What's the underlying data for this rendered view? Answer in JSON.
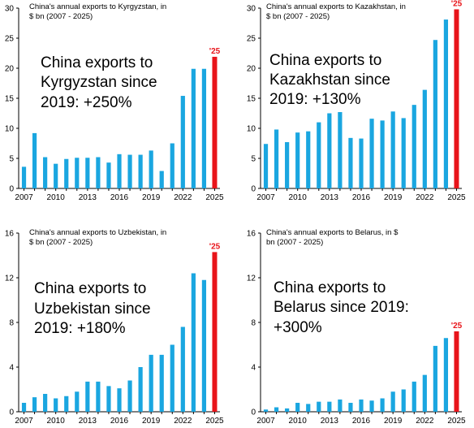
{
  "colors": {
    "bar": "#1aa6e0",
    "highlight": "#e8141a",
    "axis": "#000000"
  },
  "chart_data": [
    {
      "type": "bar",
      "title": "China's annual exports to Kyrgyzstan, in $ bn (2007 - 2025)",
      "title_lines": [
        "China's annual exports to Kyrgyzstan, in",
        "$ bn (2007 - 2025)"
      ],
      "annotation_lines": [
        "China exports to",
        "Kyrgyzstan since",
        "2019: +250%"
      ],
      "highlight_label": "'25",
      "x": [
        2007,
        2008,
        2009,
        2010,
        2011,
        2012,
        2013,
        2014,
        2015,
        2016,
        2017,
        2018,
        2019,
        2020,
        2021,
        2022,
        2023,
        2024,
        2025
      ],
      "values": [
        3.6,
        9.2,
        5.2,
        4.1,
        4.9,
        5.1,
        5.1,
        5.2,
        4.3,
        5.7,
        5.6,
        5.6,
        6.3,
        2.9,
        7.5,
        15.4,
        19.9,
        19.9,
        21.9
      ],
      "ylim": [
        0,
        30
      ],
      "yticks": [
        0,
        5,
        10,
        15,
        20,
        25,
        30
      ],
      "xticks": [
        "2007",
        "2010",
        "2013",
        "2016",
        "2019",
        "2022",
        "2025"
      ]
    },
    {
      "type": "bar",
      "title": "China's annual exports to Kazakhstan, in $ bn (2007 - 2025)",
      "title_lines": [
        "China's annual exports to Kazakhstan, in",
        "$ bn (2007 - 2025)"
      ],
      "annotation_lines": [
        "China exports to",
        "Kazakhstan since",
        "2019: +130%"
      ],
      "highlight_label": "'25",
      "x": [
        2007,
        2008,
        2009,
        2010,
        2011,
        2012,
        2013,
        2014,
        2015,
        2016,
        2017,
        2018,
        2019,
        2020,
        2021,
        2022,
        2023,
        2024,
        2025
      ],
      "values": [
        7.4,
        9.8,
        7.7,
        9.3,
        9.5,
        11.0,
        12.5,
        12.7,
        8.4,
        8.3,
        11.6,
        11.3,
        12.8,
        11.7,
        13.9,
        16.4,
        24.7,
        28.1,
        29.8
      ],
      "ylim": [
        0,
        30
      ],
      "yticks": [
        0,
        5,
        10,
        15,
        20,
        25,
        30
      ],
      "xticks": [
        "2007",
        "2010",
        "2013",
        "2016",
        "2019",
        "2022",
        "2025"
      ]
    },
    {
      "type": "bar",
      "title": "China's annual exports to Uzbekistan, in $ bn (2007 - 2025)",
      "title_lines": [
        "China's annual exports to Uzbekistan, in",
        "$ bn (2007 - 2025)"
      ],
      "annotation_lines": [
        "China exports to",
        "Uzbekistan since",
        "2019: +180%"
      ],
      "highlight_label": "'25",
      "x": [
        2007,
        2008,
        2009,
        2010,
        2011,
        2012,
        2013,
        2014,
        2015,
        2016,
        2017,
        2018,
        2019,
        2020,
        2021,
        2022,
        2023,
        2024,
        2025
      ],
      "values": [
        0.8,
        1.3,
        1.6,
        1.2,
        1.4,
        1.8,
        2.7,
        2.7,
        2.3,
        2.1,
        2.8,
        4.0,
        5.1,
        5.1,
        6.0,
        7.6,
        12.4,
        11.8,
        14.3
      ],
      "ylim": [
        0,
        16
      ],
      "yticks": [
        0,
        4,
        8,
        12,
        16
      ],
      "xticks": [
        "2007",
        "2010",
        "2013",
        "2016",
        "2019",
        "2022",
        "2025"
      ]
    },
    {
      "type": "bar",
      "title": "China's annual exports to Belarus, in $ bn (2007 - 2025)",
      "title_lines": [
        "China's annual exports to Belarus, in $",
        "bn (2007 - 2025)"
      ],
      "annotation_lines": [
        "China exports to",
        "Belarus since 2019:",
        "+300%"
      ],
      "highlight_label": "'25",
      "x": [
        2007,
        2008,
        2009,
        2010,
        2011,
        2012,
        2013,
        2014,
        2015,
        2016,
        2017,
        2018,
        2019,
        2020,
        2021,
        2022,
        2023,
        2024,
        2025
      ],
      "values": [
        0.2,
        0.4,
        0.3,
        0.8,
        0.7,
        0.9,
        0.9,
        1.1,
        0.8,
        1.1,
        1.0,
        1.2,
        1.8,
        2.0,
        2.7,
        3.3,
        5.9,
        6.6,
        7.2
      ],
      "ylim": [
        0,
        16
      ],
      "yticks": [
        0,
        4,
        8,
        12,
        16
      ],
      "xticks": [
        "2007",
        "2010",
        "2013",
        "2016",
        "2019",
        "2022",
        "2025"
      ]
    }
  ]
}
